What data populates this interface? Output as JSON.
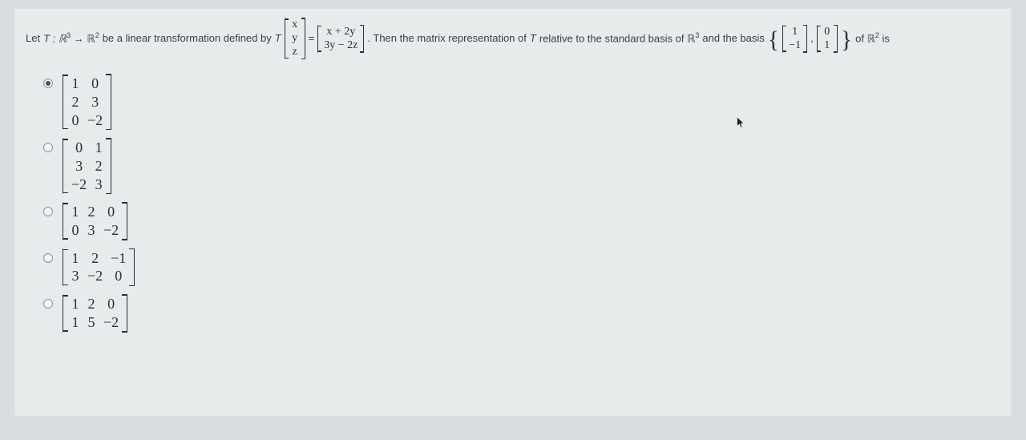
{
  "question": {
    "pre": "Let ",
    "map": "T : ℝ",
    "dom_exp": "3",
    "arrow": " → ℝ",
    "cod_exp": "2",
    "mid1": " be a linear transformation defined by ",
    "Tlabel": "T",
    "inputVec": {
      "rows": 3,
      "cols": 1,
      "cells": [
        "x",
        "y",
        "z"
      ]
    },
    "eq": "=",
    "outputVec": {
      "rows": 2,
      "cols": 1,
      "cells": [
        "x + 2y",
        "3y − 2z"
      ]
    },
    "mid2": ". Then the matrix representation of ",
    "Tname": "T",
    "mid3": " relative to the standard basis of ℝ",
    "r3exp": "3",
    "mid4": " and the basis ",
    "basis1": {
      "rows": 2,
      "cols": 1,
      "cells": [
        "1",
        "−1"
      ]
    },
    "basis_sep": ",",
    "basis2": {
      "rows": 2,
      "cols": 1,
      "cells": [
        "0",
        "1"
      ]
    },
    "mid5": " of ℝ",
    "r2exp": "2",
    "tail": " is"
  },
  "options": [
    {
      "selected": true,
      "rows": 3,
      "cols": 2,
      "cells": [
        "1",
        "0",
        "2",
        "3",
        "0",
        "−2"
      ]
    },
    {
      "selected": false,
      "rows": 3,
      "cols": 2,
      "cells": [
        "0",
        "1",
        "3",
        "2",
        "−2",
        "3"
      ]
    },
    {
      "selected": false,
      "rows": 2,
      "cols": 3,
      "cells": [
        "1",
        "2",
        "0",
        "0",
        "3",
        "−2"
      ]
    },
    {
      "selected": false,
      "rows": 2,
      "cols": 3,
      "cells": [
        "1",
        "2",
        "−1",
        "3",
        "−2",
        "0"
      ]
    },
    {
      "selected": false,
      "rows": 2,
      "cols": 3,
      "cells": [
        "1",
        "2",
        "0",
        "1",
        "5",
        "−2"
      ]
    }
  ],
  "colors": {
    "page_bg": "#e6ebec",
    "body_bg": "#d7dde0",
    "text": "#3a4044",
    "math": "#2b3034"
  }
}
